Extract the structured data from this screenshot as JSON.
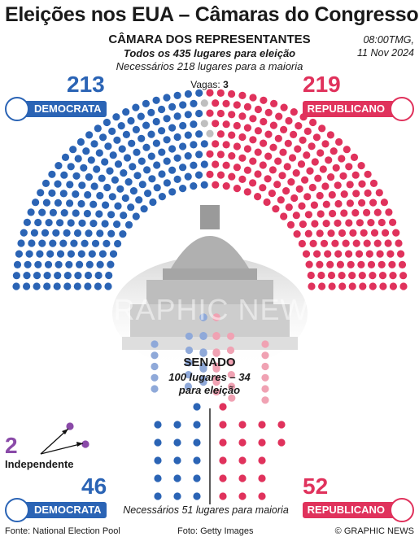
{
  "title": "Eleições nos EUA – Câmaras do Congresso",
  "timestamp": {
    "line1": "08:00TMG,",
    "line2": "11 Nov 2024"
  },
  "house": {
    "heading": "CÂMARA DOS REPRESENTANTES",
    "subtitle": "Todos os 435 lugares para eleição",
    "majority_text": "Necessários 218 lugares para a maioria",
    "vacancies_label": "Vagas:",
    "vacancies_value": "3"
  },
  "senate": {
    "heading": "SENADO",
    "subtitle_seats": "100 lugares",
    "subtitle_dash": " – ",
    "subtitle_up": "34",
    "subtitle_line2": "para eleição",
    "majority_text": "Necessários 51 lugares para maioria",
    "independent_label": "Independente"
  },
  "parties": {
    "democrat": {
      "label": "DEMOCRATA",
      "color": "#2b64b5",
      "light_color": "#8fa9d9",
      "icon": "donkey-icon"
    },
    "republican": {
      "label": "REPUBLICANO",
      "color": "#e0325c",
      "light_color": "#f0a2b3",
      "icon": "elephant-icon"
    },
    "independent": {
      "color": "#8a4aa8"
    },
    "vacant": {
      "color": "#bfbfbf"
    }
  },
  "watermark": "GRAPHIC NEWS",
  "footer": {
    "source": "Fonte: National Election Pool",
    "photo": "Foto: Getty Images",
    "credit": "© GRAPHIC NEWS"
  },
  "chart_data": [
    {
      "type": "parliament",
      "title": "CÂMARA DOS REPRESENTANTES",
      "total_seats": 435,
      "majority": 218,
      "series": [
        {
          "name": "DEMOCRATA",
          "value": 213
        },
        {
          "name": "Vagas",
          "value": 3
        },
        {
          "name": "REPUBLICANO",
          "value": 219
        }
      ]
    },
    {
      "type": "parliament",
      "title": "SENADO",
      "total_seats": 100,
      "up_for_election": 34,
      "majority": 51,
      "series": [
        {
          "name": "Independente",
          "value": 2
        },
        {
          "name": "DEMOCRATA",
          "value": 46
        },
        {
          "name": "REPUBLICANO",
          "value": 52
        }
      ]
    }
  ]
}
